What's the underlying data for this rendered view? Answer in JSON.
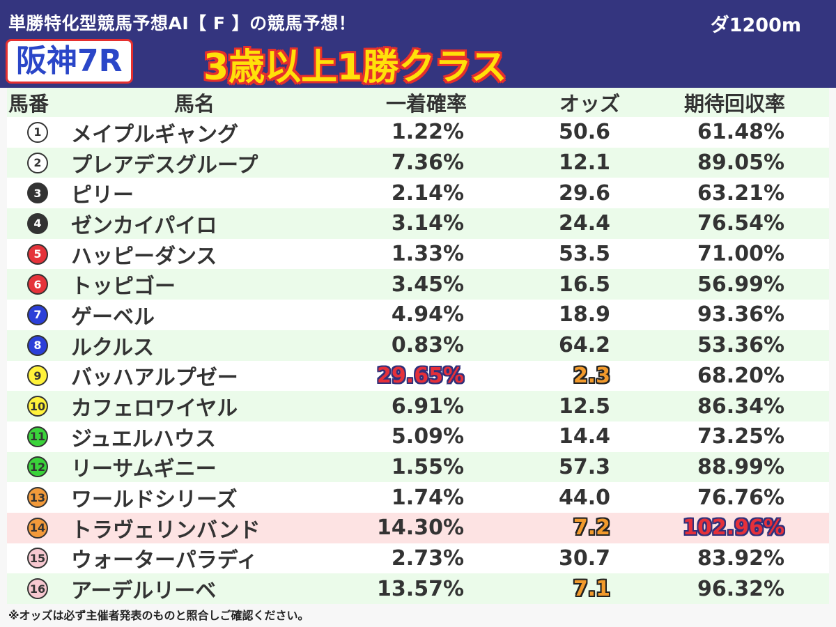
{
  "header": {
    "title": "単勝特化型競馬予想AI【 F 】の競馬予想！",
    "distance": "ダ1200m",
    "race": "阪神7R",
    "race_class": "3歳以上1勝クラス"
  },
  "table": {
    "headers": {
      "num": "馬番",
      "name": "馬名",
      "prob": "一着確率",
      "odds": "オッズ",
      "ret": "期待回収率"
    },
    "rows": [
      {
        "num": "1",
        "name": "メイプルギャング",
        "prob": "1.22%",
        "odds": "50.6",
        "ret": "61.48%",
        "badge_bg": "#ffffff",
        "badge_fg": "#333333"
      },
      {
        "num": "2",
        "name": "プレアデスグループ",
        "prob": "7.36%",
        "odds": "12.1",
        "ret": "89.05%",
        "badge_bg": "#ffffff",
        "badge_fg": "#333333"
      },
      {
        "num": "3",
        "name": "ピリー",
        "prob": "2.14%",
        "odds": "29.6",
        "ret": "63.21%",
        "badge_bg": "#333333",
        "badge_fg": "#ffffff"
      },
      {
        "num": "4",
        "name": "ゼンカイパイロ",
        "prob": "3.14%",
        "odds": "24.4",
        "ret": "76.54%",
        "badge_bg": "#333333",
        "badge_fg": "#ffffff"
      },
      {
        "num": "5",
        "name": "ハッピーダンス",
        "prob": "1.33%",
        "odds": "53.5",
        "ret": "71.00%",
        "badge_bg": "#e5333a",
        "badge_fg": "#ffffff"
      },
      {
        "num": "6",
        "name": "トッピゴー",
        "prob": "3.45%",
        "odds": "16.5",
        "ret": "56.99%",
        "badge_bg": "#e5333a",
        "badge_fg": "#ffffff"
      },
      {
        "num": "7",
        "name": "ゲーベル",
        "prob": "4.94%",
        "odds": "18.9",
        "ret": "93.36%",
        "badge_bg": "#2b3fd8",
        "badge_fg": "#ffffff"
      },
      {
        "num": "8",
        "name": "ルクルス",
        "prob": "0.83%",
        "odds": "64.2",
        "ret": "53.36%",
        "badge_bg": "#2b3fd8",
        "badge_fg": "#ffffff"
      },
      {
        "num": "9",
        "name": "バッハアルプゼー",
        "prob": "29.65%",
        "odds": "2.3",
        "ret": "68.20%",
        "badge_bg": "#fff23a",
        "badge_fg": "#333333",
        "prob_emph": true,
        "odds_emph": true
      },
      {
        "num": "10",
        "name": "カフェロワイヤル",
        "prob": "6.91%",
        "odds": "12.5",
        "ret": "86.34%",
        "badge_bg": "#fff23a",
        "badge_fg": "#333333"
      },
      {
        "num": "11",
        "name": "ジュエルハウス",
        "prob": "5.09%",
        "odds": "14.4",
        "ret": "73.25%",
        "badge_bg": "#3ad33a",
        "badge_fg": "#333333"
      },
      {
        "num": "12",
        "name": "リーサムギニー",
        "prob": "1.55%",
        "odds": "57.3",
        "ret": "88.99%",
        "badge_bg": "#3ad33a",
        "badge_fg": "#333333"
      },
      {
        "num": "13",
        "name": "ワールドシリーズ",
        "prob": "1.74%",
        "odds": "44.0",
        "ret": "76.76%",
        "badge_bg": "#f29a3a",
        "badge_fg": "#333333"
      },
      {
        "num": "14",
        "name": "トラヴェリンバンド",
        "prob": "14.30%",
        "odds": "7.2",
        "ret": "102.96%",
        "badge_bg": "#f29a3a",
        "badge_fg": "#333333",
        "highlight": true,
        "odds_emph": true,
        "ret_emph": true
      },
      {
        "num": "15",
        "name": "ウォーターパラディ",
        "prob": "2.73%",
        "odds": "30.7",
        "ret": "83.92%",
        "badge_bg": "#f7c8d0",
        "badge_fg": "#333333"
      },
      {
        "num": "16",
        "name": "アーデルリーベ",
        "prob": "13.57%",
        "odds": "7.1",
        "ret": "96.32%",
        "badge_bg": "#f7c8d0",
        "badge_fg": "#333333",
        "odds_emph": true
      }
    ]
  },
  "footer": {
    "note": "※オッズは必ず主催者発表のものと照合しご確認ください。"
  }
}
